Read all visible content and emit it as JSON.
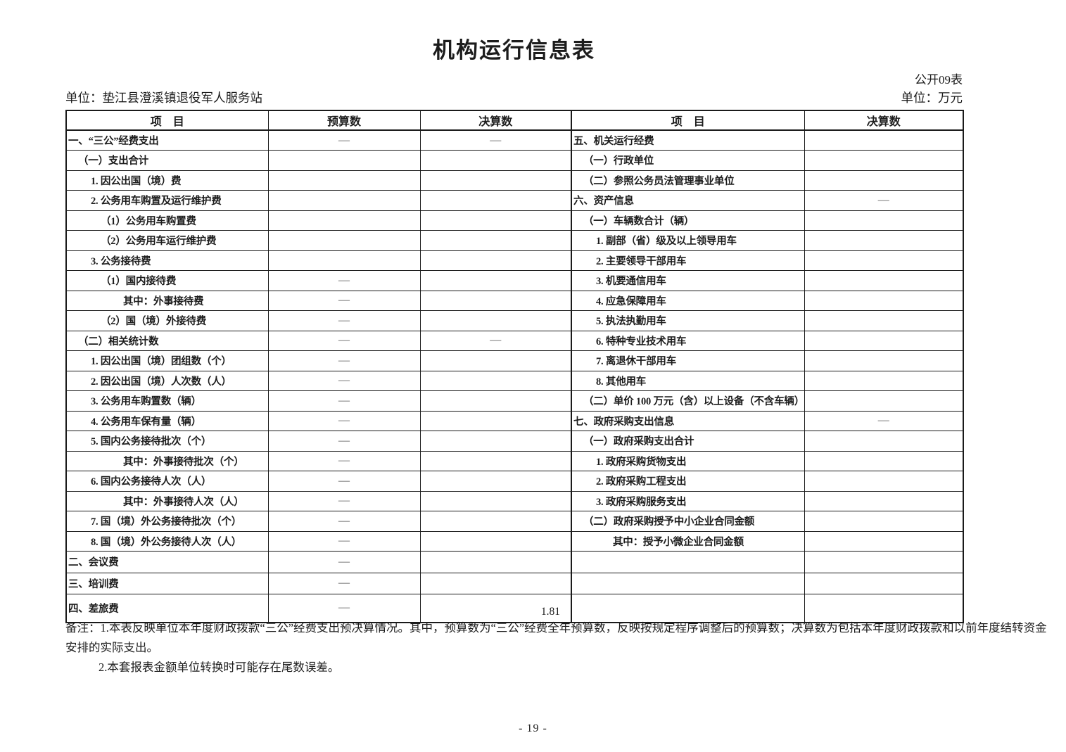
{
  "page": {
    "title": "机构运行信息表",
    "form_code": "公开09表",
    "unit_name": "单位：垫江县澄溪镇退役军人服务站",
    "currency_unit": "单位：万元",
    "page_number": "- 19 -"
  },
  "table": {
    "headers": {
      "item_left": "项　目",
      "budget": "预算数",
      "final_left": "决算数",
      "item_right": "项　目",
      "final_right": "决算数"
    },
    "left_rows": [
      {
        "label": "一、“三公”经费支出",
        "indent": 0,
        "budget": "—",
        "final": "—"
      },
      {
        "label": "（一）支出合计",
        "indent": 1,
        "budget": "",
        "final": ""
      },
      {
        "label": "1. 因公出国（境）费",
        "indent": 2,
        "budget": "",
        "final": ""
      },
      {
        "label": "2. 公务用车购置及运行维护费",
        "indent": 2,
        "budget": "",
        "final": ""
      },
      {
        "label": "（1）公务用车购置费",
        "indent": 3,
        "budget": "",
        "final": ""
      },
      {
        "label": "（2）公务用车运行维护费",
        "indent": 3,
        "budget": "",
        "final": ""
      },
      {
        "label": "3. 公务接待费",
        "indent": 2,
        "budget": "",
        "final": ""
      },
      {
        "label": "（1）国内接待费",
        "indent": 3,
        "budget": "—",
        "final": ""
      },
      {
        "label": "其中：外事接待费",
        "indent": 5,
        "budget": "—",
        "final": ""
      },
      {
        "label": "（2）国（境）外接待费",
        "indent": 3,
        "budget": "—",
        "final": ""
      },
      {
        "label": "（二）相关统计数",
        "indent": 1,
        "budget": "—",
        "final": "—"
      },
      {
        "label": "1. 因公出国（境）团组数（个）",
        "indent": 2,
        "budget": "—",
        "final": ""
      },
      {
        "label": "2. 因公出国（境）人次数（人）",
        "indent": 2,
        "budget": "—",
        "final": ""
      },
      {
        "label": "3. 公务用车购置数（辆）",
        "indent": 2,
        "budget": "—",
        "final": ""
      },
      {
        "label": "4. 公务用车保有量（辆）",
        "indent": 2,
        "budget": "—",
        "final": ""
      },
      {
        "label": "5. 国内公务接待批次（个）",
        "indent": 2,
        "budget": "—",
        "final": ""
      },
      {
        "label": "其中：外事接待批次（个）",
        "indent": 5,
        "budget": "—",
        "final": ""
      },
      {
        "label": "6. 国内公务接待人次（人）",
        "indent": 2,
        "budget": "—",
        "final": ""
      },
      {
        "label": "其中：外事接待人次（人）",
        "indent": 5,
        "budget": "—",
        "final": ""
      },
      {
        "label": "7. 国（境）外公务接待批次（个）",
        "indent": 2,
        "budget": "—",
        "final": ""
      },
      {
        "label": "8. 国（境）外公务接待人次（人）",
        "indent": 2,
        "budget": "—",
        "final": ""
      },
      {
        "label": "二、会议费",
        "indent": 0,
        "budget": "—",
        "final": ""
      },
      {
        "label": "三、培训费",
        "indent": 0,
        "budget": "—",
        "final": ""
      },
      {
        "label": "四、差旅费",
        "indent": 0,
        "budget": "—",
        "final": "1.81"
      }
    ],
    "right_rows": [
      {
        "label": "五、机关运行经费",
        "indent": 0,
        "final": ""
      },
      {
        "label": "（一）行政单位",
        "indent": 1,
        "final": ""
      },
      {
        "label": "（二）参照公务员法管理事业单位",
        "indent": 1,
        "final": ""
      },
      {
        "label": "六、资产信息",
        "indent": 0,
        "final": "—"
      },
      {
        "label": "（一）车辆数合计（辆）",
        "indent": 1,
        "final": ""
      },
      {
        "label": "1. 副部（省）级及以上领导用车",
        "indent": 2,
        "final": ""
      },
      {
        "label": "2. 主要领导干部用车",
        "indent": 2,
        "final": ""
      },
      {
        "label": "3. 机要通信用车",
        "indent": 2,
        "final": ""
      },
      {
        "label": "4. 应急保障用车",
        "indent": 2,
        "final": ""
      },
      {
        "label": "5. 执法执勤用车",
        "indent": 2,
        "final": ""
      },
      {
        "label": "6. 特种专业技术用车",
        "indent": 2,
        "final": ""
      },
      {
        "label": "7. 离退休干部用车",
        "indent": 2,
        "final": ""
      },
      {
        "label": "8. 其他用车",
        "indent": 2,
        "final": ""
      },
      {
        "label": "（二）单价 100 万元（含）以上设备（不含车辆）",
        "indent": 1,
        "final": ""
      },
      {
        "label": "七、政府采购支出信息",
        "indent": 0,
        "final": "—"
      },
      {
        "label": "（一）政府采购支出合计",
        "indent": 1,
        "final": ""
      },
      {
        "label": "1. 政府采购货物支出",
        "indent": 2,
        "final": ""
      },
      {
        "label": "2. 政府采购工程支出",
        "indent": 2,
        "final": ""
      },
      {
        "label": "3. 政府采购服务支出",
        "indent": 2,
        "final": ""
      },
      {
        "label": "（二）政府采购授予中小企业合同金额",
        "indent": 1,
        "final": ""
      },
      {
        "label": "其中：授予小微企业合同金额",
        "indent": 4,
        "final": ""
      },
      {
        "label": "",
        "indent": 0,
        "final": ""
      },
      {
        "label": "",
        "indent": 0,
        "final": ""
      },
      {
        "label": "",
        "indent": 0,
        "final": ""
      }
    ]
  },
  "notes": {
    "note1_line1": "备注：1.本表反映单位本年度财政拨款“三公”经费支出预决算情况。其中，预算数为“三公”经费全年预算数，反映按规定程序调整后的预算数；决算数为包括本年度财政拨款和以前年度结转资金",
    "note1_line2": "安排的实际支出。",
    "note2": "2.本套报表金额单位转换时可能存在尾数误差。"
  }
}
